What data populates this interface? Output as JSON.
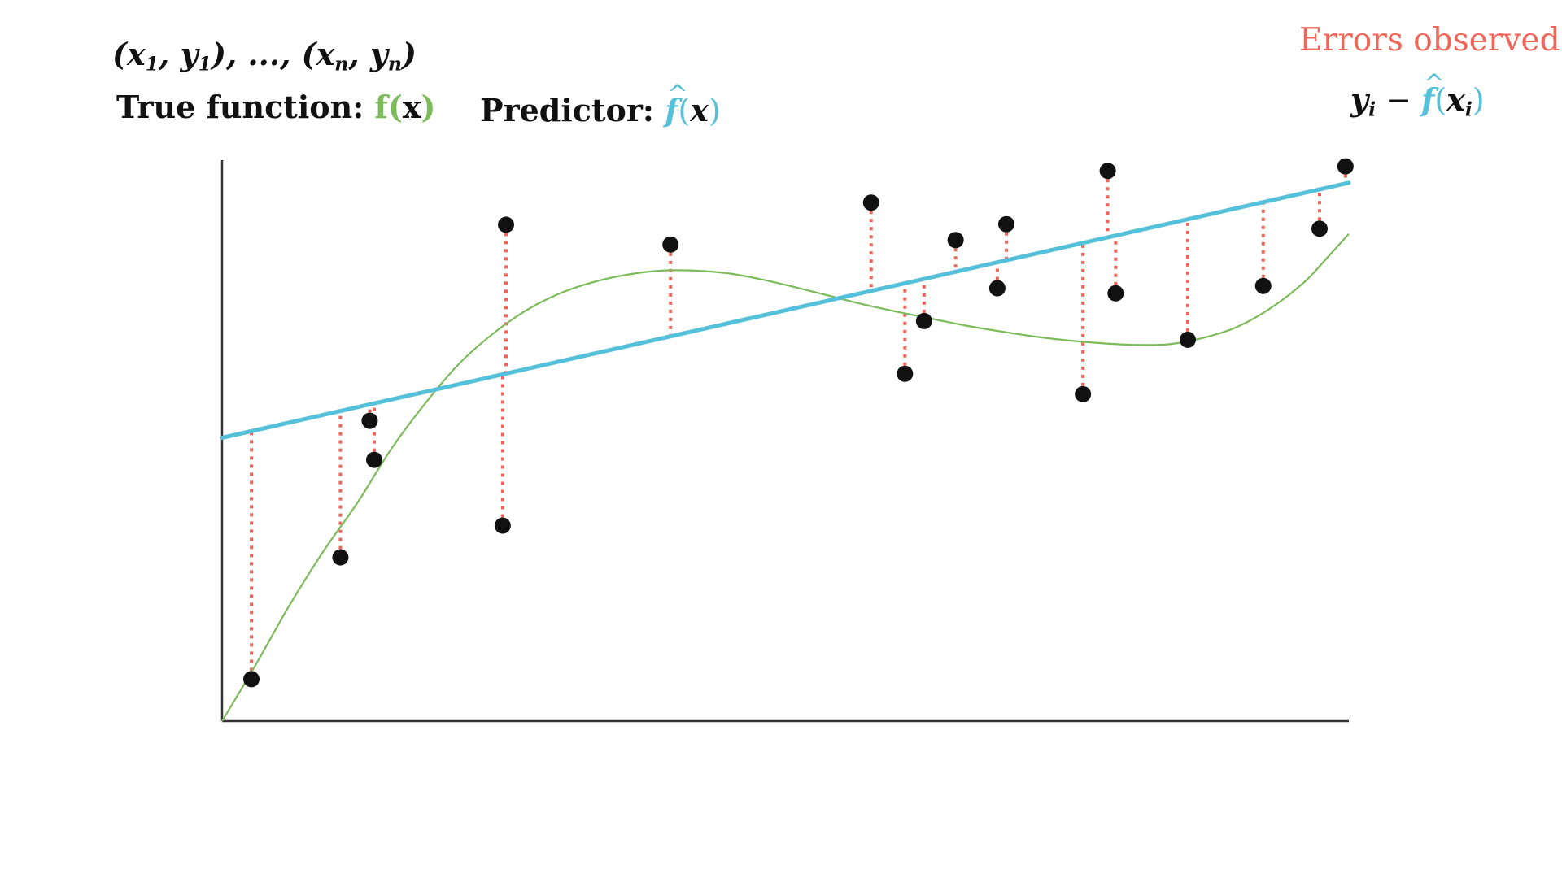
{
  "annotations": {
    "data_pairs": {
      "open1": "(",
      "x_var": "x",
      "x_sub1": "1",
      "comma1": ", ",
      "y_var": "y",
      "y_sub1": "1",
      "close1": ")",
      "ellipsis": ", ..., ",
      "open2": "(",
      "x_sub_n": "n",
      "comma2": ", ",
      "y_sub_n": "n",
      "close2": ")"
    },
    "true_function": {
      "label": "True function: ",
      "func": "f",
      "open": "(",
      "arg": "x",
      "close": ")"
    },
    "predictor": {
      "label": "Predictor: ",
      "func": "f",
      "open": "(",
      "arg": "x",
      "close": ")"
    },
    "errors": {
      "title": "Errors observed",
      "y_var": "y",
      "i_sub": "i",
      "minus": " − ",
      "func": "f",
      "open": "(",
      "arg": "x",
      "close": ")"
    }
  },
  "colors": {
    "true_function": "#7dbb5a",
    "predictor": "#55c0d9",
    "errors": "#f0655a",
    "points": "#111111",
    "axis": "#333333"
  },
  "chart_data": {
    "type": "scatter",
    "xlim": [
      0,
      100
    ],
    "ylim": [
      0,
      100
    ],
    "grid": false,
    "ticks": false,
    "predictor_line": {
      "intercept": 50,
      "slope": 0.45
    },
    "true_function_curve": [
      [
        0,
        0
      ],
      [
        3,
        10
      ],
      [
        6,
        20.5
      ],
      [
        9,
        30
      ],
      [
        12,
        38.5
      ],
      [
        15,
        48
      ],
      [
        18,
        56
      ],
      [
        21,
        63
      ],
      [
        24,
        68.3
      ],
      [
        27,
        72.5
      ],
      [
        30,
        75.5
      ],
      [
        33,
        77.5
      ],
      [
        36,
        78.8
      ],
      [
        39,
        79.5
      ],
      [
        42,
        79.5
      ],
      [
        45,
        79
      ],
      [
        48,
        77.9
      ],
      [
        51,
        76.5
      ],
      [
        54,
        75
      ],
      [
        57,
        73.5
      ],
      [
        60,
        72.2
      ],
      [
        63,
        71
      ],
      [
        66,
        69.8
      ],
      [
        69,
        68.8
      ],
      [
        72,
        67.9
      ],
      [
        75,
        67.2
      ],
      [
        78,
        66.7
      ],
      [
        81,
        66.4
      ],
      [
        84,
        66.5
      ],
      [
        87,
        67.6
      ],
      [
        90,
        69.5
      ],
      [
        93,
        72.8
      ],
      [
        96,
        77.4
      ],
      [
        98,
        81.6
      ],
      [
        100,
        86
      ]
    ],
    "points": [
      [
        2.6,
        7.4
      ],
      [
        10.5,
        28.9
      ],
      [
        13.1,
        53
      ],
      [
        13.5,
        46.1
      ],
      [
        24.9,
        34.5
      ],
      [
        25.2,
        87.6
      ],
      [
        39.8,
        84.1
      ],
      [
        57.6,
        91.5
      ],
      [
        60.6,
        61.3
      ],
      [
        62.3,
        70.6
      ],
      [
        65.1,
        84.9
      ],
      [
        68.8,
        76.4
      ],
      [
        69.6,
        87.7
      ],
      [
        76.4,
        57.7
      ],
      [
        78.6,
        97.1
      ],
      [
        79.3,
        75.5
      ],
      [
        85.7,
        67.3
      ],
      [
        92.4,
        76.8
      ],
      [
        97.4,
        86.9
      ],
      [
        99.7,
        97.9
      ]
    ]
  }
}
